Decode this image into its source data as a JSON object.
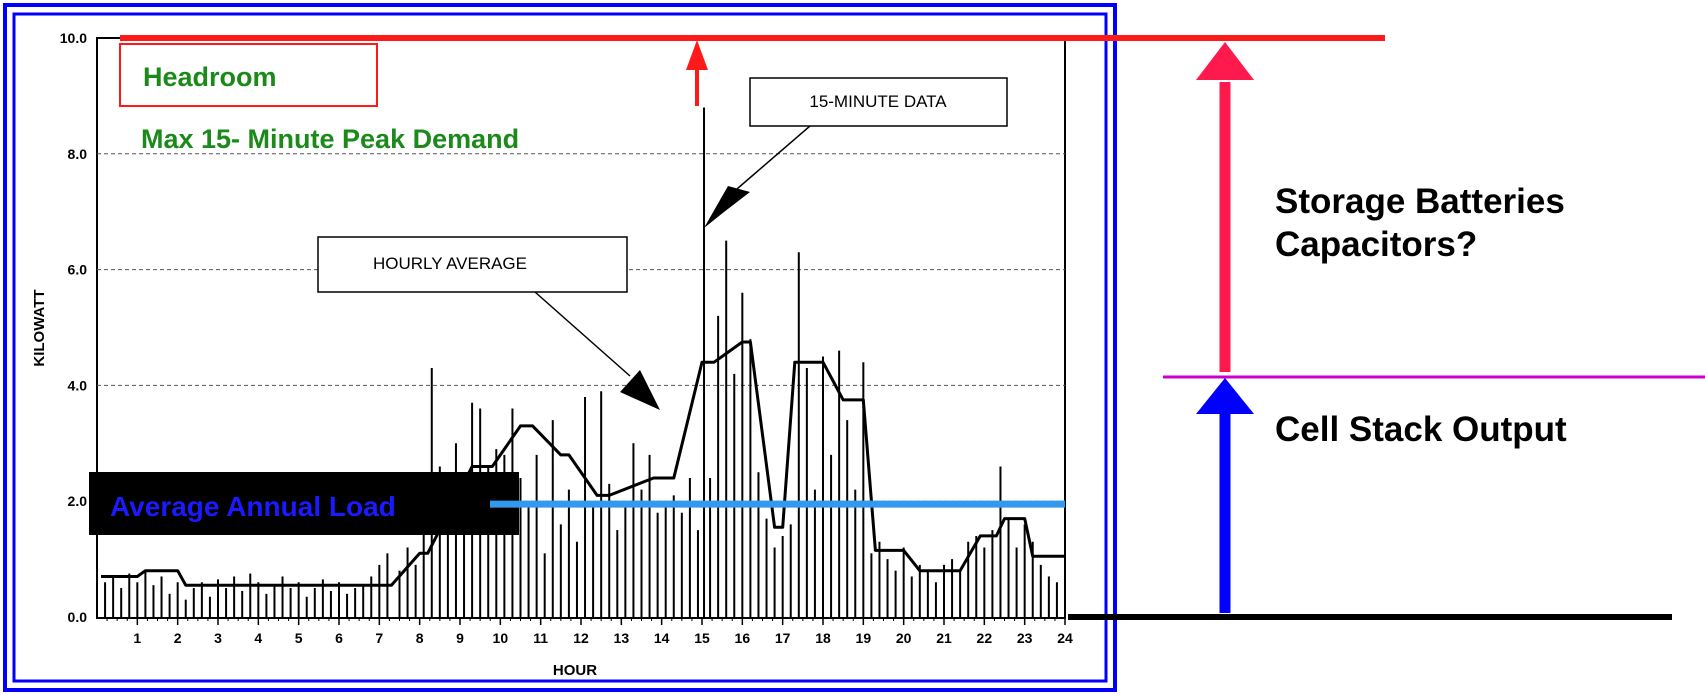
{
  "chart_data": {
    "type": "line",
    "xlabel": "HOUR",
    "ylabel": "KILOWATT",
    "ylim": [
      0,
      10
    ],
    "xlim": [
      0,
      24
    ],
    "x_ticks": [
      "1",
      "2",
      "3",
      "4",
      "5",
      "6",
      "7",
      "8",
      "9",
      "10",
      "11",
      "12",
      "13",
      "14",
      "15",
      "16",
      "17",
      "18",
      "19",
      "20",
      "21",
      "22",
      "23",
      "24"
    ],
    "y_ticks": [
      "0.0",
      "2.0",
      "4.0",
      "6.0",
      "8.0",
      "10.0"
    ],
    "y_tick_values": [
      0,
      2,
      4,
      6,
      8,
      10
    ],
    "grid": "horizontal dashed",
    "series": [
      {
        "name": "HOURLY AVERAGE",
        "type": "step",
        "x": [
          0.1,
          1.0,
          1.2,
          2.0,
          2.2,
          5.3,
          7.3,
          8.0,
          8.2,
          9.3,
          9.8,
          10.5,
          10.8,
          11.5,
          11.7,
          12.4,
          12.7,
          13.8,
          14.0,
          14.3,
          15.0,
          15.3,
          16.0,
          16.2,
          16.8,
          17.0,
          17.3,
          17.8,
          18.0,
          18.5,
          19.0,
          19.3,
          19.8,
          20.0,
          20.4,
          21.3,
          21.4,
          21.9,
          22.3,
          22.5,
          23.0,
          23.2,
          24.0
        ],
        "y": [
          0.7,
          0.7,
          0.8,
          0.8,
          0.55,
          0.55,
          0.55,
          1.1,
          1.1,
          2.6,
          2.6,
          3.3,
          3.3,
          2.8,
          2.8,
          2.1,
          2.1,
          2.4,
          2.4,
          2.4,
          4.4,
          4.4,
          4.75,
          4.75,
          1.55,
          1.55,
          4.4,
          4.4,
          4.4,
          3.75,
          3.75,
          1.15,
          1.15,
          1.15,
          0.8,
          0.8,
          0.8,
          1.4,
          1.4,
          1.7,
          1.7,
          1.05,
          1.05
        ]
      },
      {
        "name": "15-MINUTE DATA",
        "type": "spikes",
        "x": [
          0.2,
          0.4,
          0.6,
          0.8,
          1.0,
          1.2,
          1.4,
          1.6,
          1.8,
          2.0,
          2.2,
          2.4,
          2.6,
          2.8,
          3.0,
          3.2,
          3.4,
          3.6,
          3.8,
          4.0,
          4.2,
          4.4,
          4.6,
          4.8,
          5.0,
          5.2,
          5.4,
          5.6,
          5.8,
          6.0,
          6.2,
          6.4,
          6.6,
          6.8,
          7.0,
          7.2,
          7.5,
          7.7,
          7.9,
          8.1,
          8.3,
          8.5,
          8.7,
          8.9,
          9.1,
          9.3,
          9.5,
          9.7,
          9.9,
          10.1,
          10.3,
          10.5,
          10.7,
          10.9,
          11.1,
          11.3,
          11.5,
          11.7,
          11.9,
          12.1,
          12.3,
          12.5,
          12.7,
          12.9,
          13.1,
          13.3,
          13.5,
          13.7,
          13.9,
          14.1,
          14.3,
          14.5,
          14.7,
          14.9,
          15.05,
          15.2,
          15.4,
          15.6,
          15.8,
          16.0,
          16.2,
          16.4,
          16.6,
          16.8,
          17.0,
          17.2,
          17.4,
          17.6,
          17.8,
          18.0,
          18.2,
          18.4,
          18.6,
          18.8,
          19.0,
          19.2,
          19.4,
          19.6,
          19.8,
          20.0,
          20.2,
          20.4,
          20.6,
          20.8,
          21.0,
          21.2,
          21.4,
          21.6,
          21.8,
          22.0,
          22.2,
          22.4,
          22.6,
          22.8,
          23.0,
          23.2,
          23.4,
          23.6,
          23.8
        ],
        "y": [
          0.6,
          0.7,
          0.5,
          0.75,
          0.6,
          0.8,
          0.55,
          0.7,
          0.4,
          0.6,
          0.3,
          0.5,
          0.6,
          0.35,
          0.65,
          0.5,
          0.7,
          0.45,
          0.75,
          0.6,
          0.4,
          0.55,
          0.7,
          0.5,
          0.6,
          0.35,
          0.5,
          0.65,
          0.45,
          0.6,
          0.4,
          0.5,
          0.55,
          0.7,
          0.9,
          1.1,
          0.8,
          1.2,
          0.9,
          2.5,
          4.3,
          2.6,
          2.2,
          3.0,
          2.4,
          3.7,
          3.6,
          2.6,
          2.9,
          2.8,
          3.6,
          2.4,
          2.0,
          2.8,
          1.1,
          3.4,
          1.6,
          2.2,
          1.3,
          3.8,
          1.9,
          3.9,
          2.3,
          1.5,
          2.0,
          3.0,
          2.2,
          2.8,
          1.8,
          1.9,
          2.1,
          1.8,
          2.4,
          1.5,
          8.8,
          2.4,
          5.2,
          6.5,
          4.2,
          5.6,
          4.8,
          2.5,
          1.7,
          1.2,
          1.4,
          1.6,
          6.3,
          4.3,
          2.2,
          4.5,
          2.8,
          4.6,
          3.4,
          2.2,
          4.4,
          1.1,
          1.3,
          1.0,
          0.8,
          1.2,
          0.7,
          0.9,
          0.8,
          0.6,
          0.9,
          1.0,
          0.8,
          1.3,
          1.4,
          1.2,
          1.5,
          2.6,
          1.7,
          1.2,
          1.6,
          1.3,
          0.9,
          0.7,
          0.6
        ]
      }
    ],
    "reference_lines": [
      {
        "name": "Average Annual Load",
        "y": 1.95,
        "color": "#3399ee"
      },
      {
        "name": "Max 15- Minute Peak Demand",
        "y": 10.0,
        "color": "#ff1a1a"
      }
    ]
  },
  "annotations": {
    "headroom": "Headroom",
    "max_peak": "Max 15- Minute Peak Demand",
    "callout_15min": "15-MINUTE DATA",
    "callout_hourly": "HOURLY AVERAGE",
    "avg_load": "Average Annual Load",
    "storage_line1": "Storage Batteries",
    "storage_line2": "Capacitors?",
    "cell_stack": "Cell Stack Output"
  },
  "colors": {
    "frame": "#0000ff",
    "peak_line": "#ff1a1a",
    "avg_line": "#3399ee",
    "storage_arrow": "#ff1a4d",
    "cell_arrow": "#0000ff",
    "divider": "#cc00cc",
    "green_text": "#1b8a1b",
    "avg_label": "#1a1aff"
  }
}
